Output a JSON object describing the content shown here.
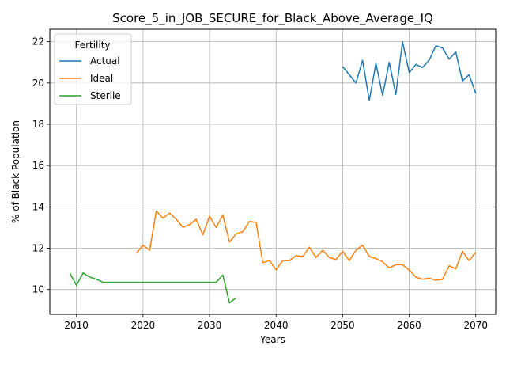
{
  "chart_data": {
    "type": "line",
    "title": "Score_5_in_JOB_SECURE_for_Black_Above_Average_IQ",
    "xlabel": "Years",
    "ylabel": "% of Black Population",
    "xlim": [
      2006,
      2073
    ],
    "ylim": [
      8.8,
      22.6
    ],
    "xticks": [
      2010,
      2020,
      2030,
      2040,
      2050,
      2060,
      2070
    ],
    "yticks": [
      10,
      12,
      14,
      16,
      18,
      20,
      22
    ],
    "grid": true,
    "legend": {
      "title": "Fertility",
      "placement": "top-left"
    },
    "series": [
      {
        "name": "Actual",
        "color": "#1f77b4",
        "x": [
          2050,
          2051,
          2052,
          2053,
          2054,
          2055,
          2056,
          2057,
          2058,
          2059,
          2060,
          2061,
          2062,
          2063,
          2064,
          2065,
          2066,
          2067,
          2068,
          2069,
          2070
        ],
        "y": [
          20.8,
          20.4,
          20.0,
          21.1,
          19.15,
          20.95,
          19.4,
          21.0,
          19.45,
          22.0,
          20.5,
          20.9,
          20.75,
          21.1,
          21.8,
          21.7,
          21.15,
          21.5,
          20.1,
          20.4,
          19.5
        ]
      },
      {
        "name": "Ideal",
        "color": "#ff7f0e",
        "x": [
          2019,
          2020,
          2021,
          2022,
          2023,
          2024,
          2025,
          2026,
          2027,
          2028,
          2029,
          2030,
          2031,
          2032,
          2033,
          2034,
          2035,
          2036,
          2037,
          2038,
          2039,
          2040,
          2041,
          2042,
          2043,
          2044,
          2045,
          2046,
          2047,
          2048,
          2049,
          2050,
          2051,
          2052,
          2053,
          2054,
          2055,
          2056,
          2057,
          2058,
          2059,
          2060,
          2061,
          2062,
          2063,
          2064,
          2065,
          2066,
          2067,
          2068,
          2069,
          2070
        ],
        "y": [
          11.75,
          12.15,
          11.9,
          13.8,
          13.45,
          13.7,
          13.4,
          13.0,
          13.15,
          13.4,
          12.65,
          13.55,
          13.0,
          13.6,
          12.3,
          12.7,
          12.8,
          13.3,
          13.25,
          11.3,
          11.4,
          10.95,
          11.4,
          11.4,
          11.65,
          11.6,
          12.05,
          11.55,
          11.9,
          11.55,
          11.45,
          11.85,
          11.4,
          11.9,
          12.15,
          11.6,
          11.5,
          11.35,
          11.05,
          11.2,
          11.2,
          10.95,
          10.6,
          10.5,
          10.55,
          10.45,
          10.5,
          11.15,
          11.0,
          11.85,
          11.4,
          11.8
        ]
      },
      {
        "name": "Sterile",
        "color": "#2ca02c",
        "x": [
          2009,
          2010,
          2011,
          2012,
          2013,
          2014,
          2015,
          2016,
          2017,
          2018,
          2019,
          2020,
          2021,
          2022,
          2023,
          2024,
          2025,
          2026,
          2027,
          2028,
          2029,
          2030,
          2031,
          2032,
          2033,
          2034
        ],
        "y": [
          10.8,
          10.2,
          10.8,
          10.6,
          10.5,
          10.35,
          10.35,
          10.35,
          10.35,
          10.35,
          10.35,
          10.35,
          10.35,
          10.35,
          10.35,
          10.35,
          10.35,
          10.35,
          10.35,
          10.35,
          10.35,
          10.35,
          10.35,
          10.7,
          9.35,
          9.6
        ]
      }
    ]
  }
}
